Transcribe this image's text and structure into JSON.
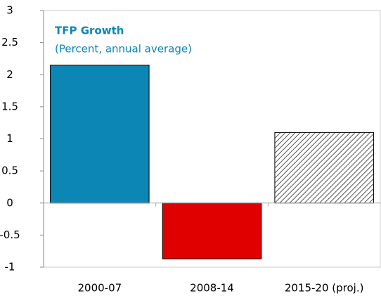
{
  "chart_data": {
    "type": "bar",
    "title": "TFP Growth",
    "subtitle": "(Percent, annual average)",
    "categories": [
      "2000-07",
      "2008-14",
      "2015-20 (proj.)"
    ],
    "values": [
      2.15,
      -0.87,
      1.1
    ],
    "colors": [
      "#0b86b5",
      "#e00000",
      "#555555"
    ],
    "hatched": [
      false,
      false,
      true
    ],
    "ylim": [
      -1,
      3
    ],
    "yticks": [
      -1,
      -0.5,
      0,
      0.5,
      1,
      1.5,
      2,
      2.5,
      3
    ],
    "grid": false
  }
}
